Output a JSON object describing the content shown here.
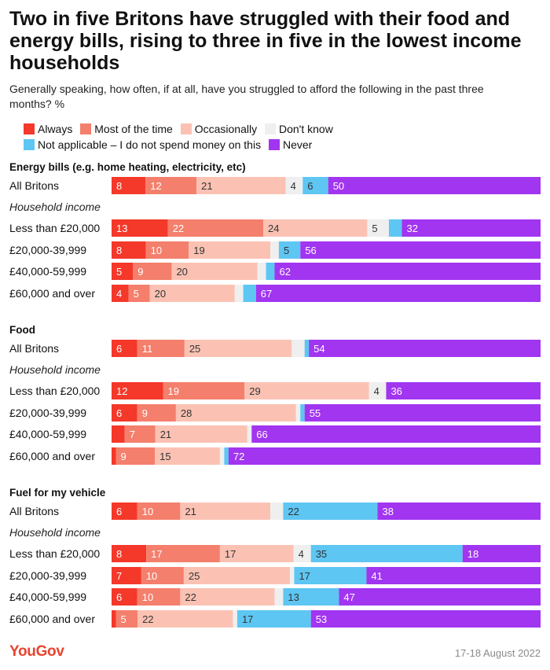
{
  "title": "Two in five Britons have struggled with their food and energy bills, rising to three in five in the lowest income households",
  "subtitle": "Generally speaking, how often, if at all, have you struggled to afford the following in the past three months? %",
  "legend": [
    {
      "label": "Always",
      "color": "#f4382a"
    },
    {
      "label": "Most of the time",
      "color": "#f47f6c"
    },
    {
      "label": "Occasionally",
      "color": "#fbc2b4"
    },
    {
      "label": "Don't know",
      "color": "#efefef"
    },
    {
      "label": "Not applicable – I do not spend money on this",
      "color": "#5ec6f2"
    },
    {
      "label": "Never",
      "color": "#a135f0"
    }
  ],
  "footer": {
    "logo": "YouGov",
    "date": "17-18 August 2022"
  },
  "chart_data": {
    "type": "stacked-bar",
    "series": [
      "Always",
      "Most of the time",
      "Occasionally",
      "Don't know",
      "Not applicable – I do not spend money on this",
      "Never"
    ],
    "sections": [
      {
        "title": "Energy bills (e.g. home heating, electricity, etc)",
        "subheading": "Household income",
        "rows": [
          {
            "label": "All Britons",
            "values": [
              8,
              12,
              21,
              4,
              6,
              50
            ]
          },
          {
            "label": "Less than £20,000",
            "values": [
              13,
              22,
              24,
              5,
              3,
              32
            ]
          },
          {
            "label": "£20,000-39,999",
            "values": [
              8,
              10,
              19,
              2,
              5,
              56
            ]
          },
          {
            "label": "£40,000-59,999",
            "values": [
              5,
              9,
              20,
              2,
              2,
              62
            ]
          },
          {
            "label": "£60,000 and over",
            "values": [
              4,
              5,
              20,
              2,
              3,
              67
            ]
          }
        ]
      },
      {
        "title": "Food",
        "subheading": "Household income",
        "rows": [
          {
            "label": "All Britons",
            "values": [
              6,
              11,
              25,
              3,
              1,
              54
            ]
          },
          {
            "label": "Less than £20,000",
            "values": [
              12,
              19,
              29,
              4,
              0,
              36
            ]
          },
          {
            "label": "£20,000-39,999",
            "values": [
              6,
              9,
              28,
              1,
              1,
              55
            ]
          },
          {
            "label": "£40,000-59,999",
            "values": [
              3,
              7,
              21,
              1,
              0,
              66
            ]
          },
          {
            "label": "£60,000 and over",
            "values": [
              1,
              9,
              15,
              1,
              1,
              72
            ]
          }
        ]
      },
      {
        "title": "Fuel for my vehicle",
        "subheading": "Household income",
        "rows": [
          {
            "label": "All Britons",
            "values": [
              6,
              10,
              21,
              3,
              22,
              38
            ]
          },
          {
            "label": "Less than £20,000",
            "values": [
              8,
              17,
              17,
              4,
              35,
              18
            ]
          },
          {
            "label": "£20,000-39,999",
            "values": [
              7,
              10,
              25,
              1,
              17,
              41
            ]
          },
          {
            "label": "£40,000-59,999",
            "values": [
              6,
              10,
              22,
              2,
              13,
              47
            ]
          },
          {
            "label": "£60,000 and over",
            "values": [
              1,
              5,
              22,
              1,
              17,
              53
            ]
          }
        ]
      }
    ]
  }
}
